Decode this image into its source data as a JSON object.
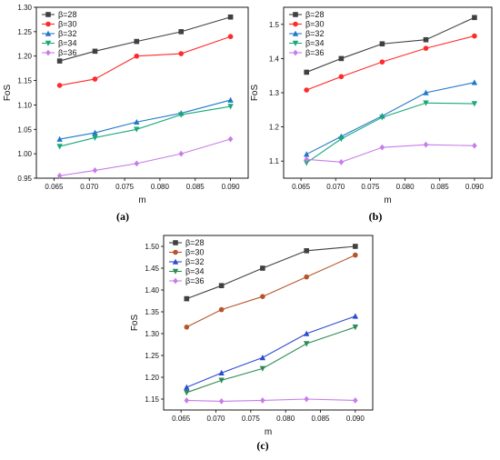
{
  "colors": {
    "b28": "#404040",
    "b30_a": "#ff2a2a",
    "b30_b": "#ff2a2a",
    "b30_c": "#b5562a",
    "b32": "#1f78c8",
    "b32_c": "#2b4bd0",
    "b34": "#1aa87a",
    "b34_c": "#2e8b57",
    "b36": "#c77ce8"
  },
  "chart_data": [
    {
      "type": "line",
      "caption": "(a)",
      "xlabel": "m",
      "ylabel": "FoS",
      "x": [
        0.0658,
        0.0708,
        0.0767,
        0.083,
        0.09
      ],
      "xlim": [
        0.0625,
        0.0925
      ],
      "ylim": [
        0.95,
        1.3
      ],
      "xticks": [
        "0.065",
        "0.070",
        "0.075",
        "0.080",
        "0.085",
        "0.090"
      ],
      "yticks": [
        "0.95",
        "1.00",
        "1.05",
        "1.10",
        "1.15",
        "1.20",
        "1.25",
        "1.30"
      ],
      "legend_position": "top-left",
      "series": [
        {
          "name": "β=28",
          "marker": "square",
          "color": "#404040",
          "values": [
            1.19,
            1.21,
            1.23,
            1.25,
            1.28
          ]
        },
        {
          "name": "β=30",
          "marker": "circle",
          "color": "#ff2a2a",
          "values": [
            1.14,
            1.153,
            1.2,
            1.205,
            1.24
          ]
        },
        {
          "name": "β=32",
          "marker": "triangle-up",
          "color": "#1f78c8",
          "values": [
            1.03,
            1.043,
            1.065,
            1.083,
            1.11
          ]
        },
        {
          "name": "β=34",
          "marker": "triangle-down",
          "color": "#1aa87a",
          "values": [
            1.015,
            1.033,
            1.05,
            1.08,
            1.097
          ]
        },
        {
          "name": "β=36",
          "marker": "diamond",
          "color": "#c77ce8",
          "values": [
            0.955,
            0.966,
            0.98,
            1.0,
            1.03
          ]
        }
      ]
    },
    {
      "type": "line",
      "caption": "(b)",
      "xlabel": "m",
      "ylabel": "FoS",
      "x": [
        0.0658,
        0.0708,
        0.0767,
        0.083,
        0.09
      ],
      "xlim": [
        0.0625,
        0.0925
      ],
      "ylim": [
        1.05,
        1.55
      ],
      "xticks": [
        "0.065",
        "0.070",
        "0.075",
        "0.080",
        "0.085",
        "0.090"
      ],
      "yticks": [
        "1.1",
        "1.2",
        "1.3",
        "1.4",
        "1.5"
      ],
      "legend_position": "top-left",
      "series": [
        {
          "name": "β=28",
          "marker": "square",
          "color": "#404040",
          "values": [
            1.36,
            1.4,
            1.443,
            1.455,
            1.52
          ]
        },
        {
          "name": "β=30",
          "marker": "circle",
          "color": "#ff2a2a",
          "values": [
            1.308,
            1.347,
            1.39,
            1.43,
            1.466
          ]
        },
        {
          "name": "β=32",
          "marker": "triangle-up",
          "color": "#1f78c8",
          "values": [
            1.12,
            1.172,
            1.232,
            1.3,
            1.33
          ]
        },
        {
          "name": "β=34",
          "marker": "triangle-down",
          "color": "#1aa87a",
          "values": [
            1.095,
            1.165,
            1.228,
            1.27,
            1.268
          ]
        },
        {
          "name": "β=36",
          "marker": "diamond",
          "color": "#c77ce8",
          "values": [
            1.105,
            1.097,
            1.14,
            1.148,
            1.145
          ]
        }
      ]
    },
    {
      "type": "line",
      "caption": "(c)",
      "xlabel": "m",
      "ylabel": "FoS",
      "x": [
        0.0658,
        0.0708,
        0.0767,
        0.083,
        0.09
      ],
      "xlim": [
        0.0625,
        0.0925
      ],
      "ylim": [
        1.125,
        1.525
      ],
      "xticks": [
        "0.065",
        "0.070",
        "0.075",
        "0.080",
        "0.085",
        "0.090"
      ],
      "yticks": [
        "1.15",
        "1.20",
        "1.25",
        "1.30",
        "1.35",
        "1.40",
        "1.45",
        "1.50"
      ],
      "legend_position": "top-left",
      "series": [
        {
          "name": "β=28",
          "marker": "square",
          "color": "#404040",
          "values": [
            1.38,
            1.41,
            1.45,
            1.49,
            1.5
          ]
        },
        {
          "name": "β=30",
          "marker": "circle",
          "color": "#b5562a",
          "values": [
            1.315,
            1.355,
            1.385,
            1.43,
            1.48
          ]
        },
        {
          "name": "β=32",
          "marker": "triangle-up",
          "color": "#2b4bd0",
          "values": [
            1.177,
            1.21,
            1.245,
            1.3,
            1.34
          ]
        },
        {
          "name": "β=34",
          "marker": "triangle-down",
          "color": "#2e8b57",
          "values": [
            1.165,
            1.193,
            1.22,
            1.277,
            1.315
          ]
        },
        {
          "name": "β=36",
          "marker": "diamond",
          "color": "#c77ce8",
          "values": [
            1.147,
            1.145,
            1.147,
            1.15,
            1.147
          ]
        }
      ]
    }
  ]
}
